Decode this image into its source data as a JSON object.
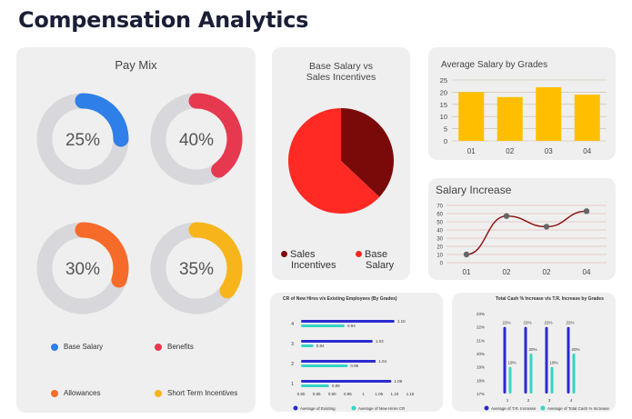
{
  "page_title": "Compensation Analytics",
  "pay_mix": {
    "title": "Pay Mix",
    "colors": {
      "track": "#d8d8dc"
    },
    "legend": [
      {
        "label": "Base Salary",
        "color": "#2f7fe8"
      },
      {
        "label": "Benefits",
        "color": "#e63950"
      },
      {
        "label": "Allowances",
        "color": "#f76b2a"
      },
      {
        "label": "Short Term Incentives",
        "color": "#f8b51b"
      }
    ]
  },
  "chart_data": [
    {
      "type": "pie",
      "title": "Pay Mix",
      "values": [
        25,
        40,
        30,
        35
      ],
      "labels": [
        "25%",
        "40%",
        "30%",
        "35%"
      ],
      "categories": [
        "Base Salary",
        "Benefits",
        "Allowances",
        "Short Term Incentives"
      ]
    },
    {
      "type": "pie",
      "title": "Base Salary vs Sales Incentives",
      "title_lines": [
        "Base Salary vs",
        "Sales Incentives"
      ],
      "categories": [
        "Sales Incentives",
        "Base Salary"
      ],
      "legend_lines": [
        [
          "Sales",
          "Incentives"
        ],
        [
          "Base",
          "Salary"
        ]
      ],
      "values": [
        37,
        63
      ],
      "colors": [
        "#7a0a0a",
        "#ff2a24"
      ]
    },
    {
      "type": "bar",
      "title": "Average Salary by Grades",
      "categories": [
        "01",
        "02",
        "03",
        "04"
      ],
      "values": [
        20,
        18,
        22,
        19
      ],
      "ylim": [
        0,
        25
      ],
      "yticks": [
        0,
        5,
        10,
        15,
        20,
        25
      ],
      "color": "#ffbf00"
    },
    {
      "type": "line",
      "title": "Salary Increase",
      "categories": [
        "01",
        "02",
        "02",
        "04"
      ],
      "values": [
        10,
        57,
        44,
        63
      ],
      "ylim": [
        0,
        70
      ],
      "yticks": [
        0,
        10,
        20,
        30,
        40,
        50,
        60,
        70
      ],
      "color": "#8b0a0a"
    },
    {
      "type": "bar",
      "orientation": "horizontal",
      "title": "CR of New Hires v/s Existing Employees (By Grades)",
      "categories": [
        "1",
        "2",
        "3",
        "4"
      ],
      "series": [
        {
          "name": "Average of Existing Employees CR",
          "values": [
            1.09,
            1.04,
            1.03,
            1.1
          ],
          "color": "#2a2ad0"
        },
        {
          "name": "Average of New Hires CR",
          "values": [
            0.89,
            0.95,
            0.84,
            0.94
          ],
          "color": "#34d4c4"
        }
      ],
      "legend_lines": [
        [
          "Average of Existing",
          "Employees CR"
        ],
        [
          "Average of New Hires CR"
        ]
      ],
      "xlim": [
        0.8,
        1.15
      ],
      "xticks": [
        "0.80",
        "0.85",
        "0.90",
        "0.95",
        "1",
        "1.05",
        "1.10",
        "1.15"
      ]
    },
    {
      "type": "bar",
      "title": "Total Cash % Increase v/s T.R. Increase by Grades",
      "categories": [
        "1",
        "2",
        "3",
        "4"
      ],
      "series": [
        {
          "name": "Average of T.R. Increase",
          "values": [
            22,
            22,
            22,
            22
          ],
          "color": "#2a2ad0"
        },
        {
          "name": "Average of Total Cash % Increase",
          "values": [
            19,
            20,
            19,
            20
          ],
          "color": "#34d4c4"
        }
      ],
      "labels": [
        [
          "22%",
          "22%",
          "22%",
          "22%"
        ],
        [
          "19%",
          "20%",
          "19%",
          "20%"
        ]
      ],
      "ylim": [
        17,
        23
      ],
      "yticks": [
        "17%",
        "18%",
        "19%",
        "20%",
        "21%",
        "22%",
        "23%"
      ]
    }
  ]
}
